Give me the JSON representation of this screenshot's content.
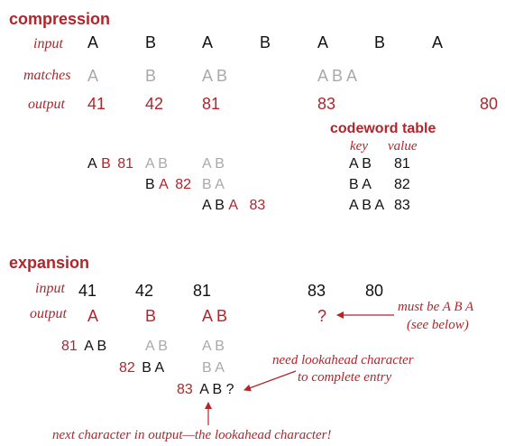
{
  "colors": {
    "accent": "#b1252b",
    "text": "#111111",
    "muted": "#a9a9a9"
  },
  "compression": {
    "title": "compression",
    "input_label": "input",
    "matches_label": "matches",
    "output_label": "output",
    "input": [
      "A",
      "B",
      "A",
      "B",
      "A",
      "B",
      "A"
    ],
    "matches": [
      "A",
      "B",
      "A B",
      "A B A"
    ],
    "output": [
      "41",
      "42",
      "81",
      "83",
      "80"
    ],
    "steps": [
      {
        "key": "A",
        "lookahead": "B",
        "code": "81",
        "trail": [
          "A B",
          "A B"
        ]
      },
      {
        "key": "B",
        "lookahead": "A",
        "code": "82",
        "trail": [
          "B A"
        ]
      },
      {
        "key": "A B",
        "lookahead": "A",
        "code": "83"
      }
    ],
    "codeword_table": {
      "title": "codeword table",
      "key_header": "key",
      "value_header": "value",
      "rows": [
        {
          "key": "A B",
          "value": "81"
        },
        {
          "key": "B A",
          "value": "82"
        },
        {
          "key": "A B A",
          "value": "83"
        }
      ]
    }
  },
  "expansion": {
    "title": "expansion",
    "input_label": "input",
    "output_label": "output",
    "input": [
      "41",
      "42",
      "81",
      "83",
      "80"
    ],
    "output": [
      "A",
      "B",
      "A B",
      "?"
    ],
    "must_be_note": "must be A B A",
    "see_below_note": "(see below)",
    "steps": [
      {
        "code": "81",
        "entry": "A B",
        "trail": [
          "A B",
          "A B"
        ]
      },
      {
        "code": "82",
        "entry": "B A",
        "trail": [
          "B A"
        ]
      },
      {
        "code": "83",
        "entry": "A B ?"
      }
    ],
    "lookahead_note_line1": "need lookahead character",
    "lookahead_note_line2": "to complete entry",
    "bottom_note": "next character in output—the lookahead character!"
  }
}
